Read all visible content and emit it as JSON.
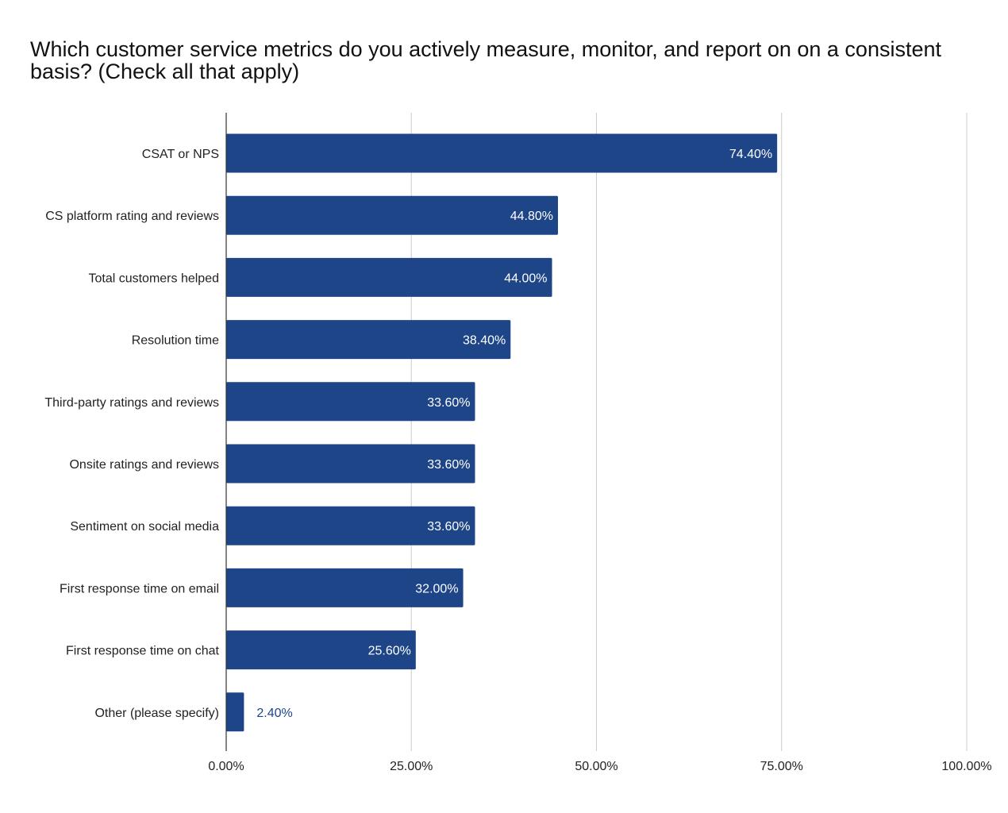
{
  "chart_data": {
    "type": "bar",
    "orientation": "horizontal",
    "title": "Which customer service metrics do you actively measure, monitor, and report on on a consistent basis? (Check all that apply)",
    "categories": [
      "CSAT or NPS",
      "CS platform rating and reviews",
      "Total customers helped",
      "Resolution time",
      "Third-party ratings and reviews",
      "Onsite ratings and reviews",
      "Sentiment on social media",
      "First response time on email",
      "First response time on chat",
      "Other (please specify)"
    ],
    "values": [
      74.4,
      44.8,
      44.0,
      38.4,
      33.6,
      33.6,
      33.6,
      32.0,
      25.6,
      2.4
    ],
    "value_labels": [
      "74.40%",
      "44.80%",
      "44.00%",
      "38.40%",
      "33.60%",
      "33.60%",
      "33.60%",
      "32.00%",
      "25.60%",
      "2.40%"
    ],
    "xlim": [
      0,
      100
    ],
    "xticks": [
      0,
      25,
      50,
      75,
      100
    ],
    "xtick_labels": [
      "0.00%",
      "25.00%",
      "50.00%",
      "75.00%",
      "100.00%"
    ],
    "grid": true,
    "legend": "none",
    "colors": {
      "bar": "#1d4587",
      "label_inside": "#ffffff",
      "label_outside": "#1d4587",
      "grid": "#cccccc",
      "axis": "#333333",
      "text": "#222222"
    }
  }
}
